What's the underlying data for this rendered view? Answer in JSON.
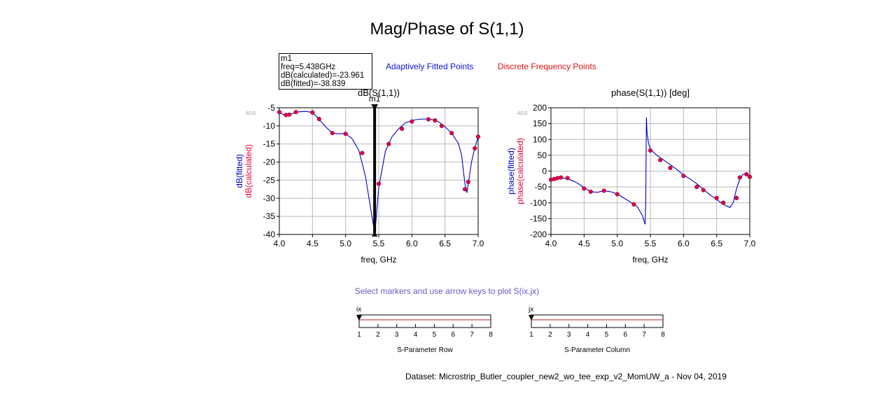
{
  "title": "Mag/Phase of S(1,1)",
  "legend": {
    "fitted": "Adaptively Fitted Points",
    "discrete": "Discrete Frequency Points"
  },
  "colors": {
    "fitted": "#0000cc",
    "discrete": "#e8003a",
    "grid": "#b8b8b8",
    "hint": "#6a5acd",
    "slider_line": "#b02020"
  },
  "marker": {
    "name": "m1",
    "lines": [
      "m1",
      "freq=5.438GHz",
      "dB(calculated)=-23.961",
      "dB(fitted)=-38.839"
    ],
    "freq": 5.438
  },
  "hint": "Select markers and use arrow keys to plot S(ix,jx)",
  "dataset": "Dataset: Microstrip_Butler_coupler_new2_wo_tee_exp_v2_MomUW_a - Nov 04, 2019",
  "sliders": [
    {
      "label": "ix",
      "caption": "S-Parameter Row",
      "ticks": [
        "1",
        "2",
        "3",
        "4",
        "5",
        "6",
        "7",
        "8"
      ],
      "value": 1
    },
    {
      "label": "jx",
      "caption": "S-Parameter Column",
      "ticks": [
        "1",
        "2",
        "3",
        "4",
        "5",
        "6",
        "7",
        "8"
      ],
      "value": 1
    }
  ],
  "chart_data": [
    {
      "type": "line",
      "title": "dB(S(1,1))",
      "xlabel": "freq, GHz",
      "ylabel_fitted": "dB(fitted)",
      "ylabel_calc": "dB(calculated)",
      "watermark": "ADS",
      "xlim": [
        4.0,
        7.0
      ],
      "ylim": [
        -40,
        -5
      ],
      "xticks": [
        "4.0",
        "4.5",
        "5.0",
        "5.5",
        "6.0",
        "6.5",
        "7.0"
      ],
      "yticks": [
        "-5",
        "-10",
        "-15",
        "-20",
        "-25",
        "-30",
        "-35",
        "-40"
      ],
      "grid": true,
      "series": [
        {
          "name": "dB(fitted)",
          "x": [
            4.0,
            4.05,
            4.1,
            4.2,
            4.3,
            4.4,
            4.5,
            4.6,
            4.7,
            4.8,
            4.9,
            5.0,
            5.1,
            5.2,
            5.3,
            5.38,
            5.42,
            5.44,
            5.46,
            5.5,
            5.6,
            5.7,
            5.8,
            5.9,
            6.0,
            6.1,
            6.2,
            6.3,
            6.4,
            6.5,
            6.6,
            6.7,
            6.75,
            6.8,
            6.83,
            6.86,
            6.9,
            6.95,
            7.0
          ],
          "y": [
            -6.2,
            -6.8,
            -7.0,
            -6.6,
            -6.1,
            -6.0,
            -6.3,
            -8.2,
            -10.3,
            -12.0,
            -12.2,
            -12.1,
            -13.6,
            -16.8,
            -24.0,
            -33.0,
            -37.5,
            -38.8,
            -36.0,
            -27.0,
            -17.0,
            -13.0,
            -10.8,
            -9.2,
            -8.5,
            -8.2,
            -8.1,
            -8.2,
            -8.8,
            -10.3,
            -12.0,
            -14.8,
            -18.0,
            -26.0,
            -28.5,
            -25.0,
            -20.0,
            -16.0,
            -13.0
          ]
        },
        {
          "name": "dB(calculated)",
          "x": [
            4.0,
            4.1,
            4.15,
            4.25,
            4.5,
            4.6,
            4.8,
            5.0,
            5.25,
            5.5,
            5.65,
            5.85,
            6.0,
            6.25,
            6.35,
            6.45,
            6.6,
            6.8,
            6.85,
            6.95,
            7.0
          ],
          "y": [
            -6.2,
            -7.0,
            -6.9,
            -6.2,
            -6.3,
            -8.1,
            -12.0,
            -12.2,
            -17.5,
            -26.0,
            -15.0,
            -10.8,
            -8.8,
            -8.2,
            -8.5,
            -10.0,
            -12.0,
            -27.5,
            -25.5,
            -16.2,
            -13.0
          ]
        }
      ]
    },
    {
      "type": "line",
      "title": "phase(S(1,1)) [deg]",
      "xlabel": "freq, GHz",
      "ylabel_fitted": "phase(fitted)",
      "ylabel_calc": "phase(calculated)",
      "watermark": "ADS",
      "xlim": [
        4.0,
        7.0
      ],
      "ylim": [
        -200,
        200
      ],
      "xticks": [
        "4.0",
        "4.5",
        "5.0",
        "5.5",
        "6.0",
        "6.5",
        "7.0"
      ],
      "yticks": [
        "200",
        "150",
        "100",
        "50",
        "0",
        "-50",
        "-100",
        "-150",
        "-200"
      ],
      "grid": true,
      "series": [
        {
          "name": "phase(fitted)",
          "x": [
            4.0,
            4.1,
            4.2,
            4.3,
            4.4,
            4.5,
            4.6,
            4.7,
            4.8,
            4.9,
            5.0,
            5.1,
            5.2,
            5.3,
            5.38,
            5.42,
            5.43,
            5.44,
            5.45,
            5.47,
            5.5,
            5.6,
            5.7,
            5.8,
            5.9,
            6.0,
            6.1,
            6.2,
            6.3,
            6.4,
            6.5,
            6.6,
            6.7,
            6.75,
            6.8,
            6.85,
            6.9,
            6.95,
            7.0
          ],
          "y": [
            -27,
            -22,
            -22,
            -28,
            -38,
            -52,
            -65,
            -67,
            -62,
            -65,
            -72,
            -85,
            -98,
            -112,
            -140,
            -168,
            -100,
            170,
            120,
            90,
            68,
            50,
            35,
            20,
            5,
            -12,
            -25,
            -40,
            -58,
            -75,
            -90,
            -105,
            -115,
            -100,
            -55,
            -25,
            -10,
            -8,
            -18
          ]
        },
        {
          "name": "phase(calculated)",
          "x": [
            4.0,
            4.05,
            4.1,
            4.15,
            4.25,
            4.5,
            4.6,
            4.8,
            5.0,
            5.25,
            5.5,
            5.65,
            5.8,
            6.0,
            6.2,
            6.3,
            6.5,
            6.6,
            6.8,
            6.85,
            6.95,
            7.0
          ],
          "y": [
            -27,
            -25,
            -22,
            -20,
            -22,
            -55,
            -65,
            -62,
            -73,
            -105,
            65,
            35,
            10,
            -15,
            -50,
            -60,
            -85,
            -100,
            -85,
            -20,
            -10,
            -18
          ]
        }
      ]
    }
  ]
}
